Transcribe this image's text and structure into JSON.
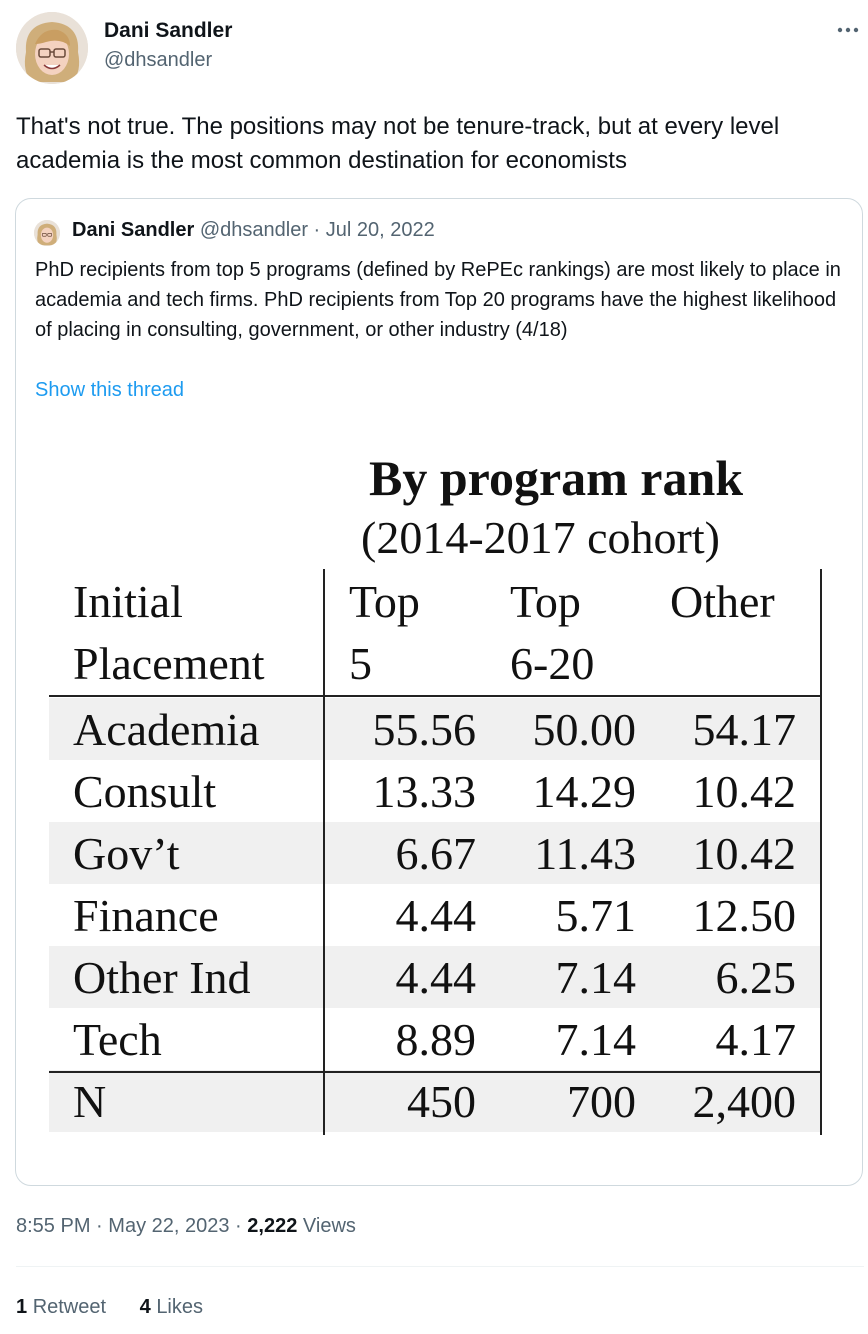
{
  "tweet": {
    "author_name": "Dani Sandler",
    "author_handle": "@dhsandler",
    "text": "That's not true. The positions may not be tenure-track, but at every level academia is the most common destination for economists",
    "time": "8:55 PM",
    "date": "May 22, 2023",
    "views_count": "2,222",
    "views_label": "Views",
    "retweets_count": "1",
    "retweets_label": "Retweet",
    "likes_count": "4",
    "likes_label": "Likes"
  },
  "quoted": {
    "author_name": "Dani Sandler",
    "author_handle": "@dhsandler",
    "separator": "·",
    "date": "Jul 20, 2022",
    "text": "PhD recipients from top 5 programs (defined by RePEc rankings) are most likely to place in academia and tech firms. PhD recipients from Top 20 programs have the highest likelihood of placing in consulting, government, or other industry (4/18)",
    "show_thread": "Show this thread"
  },
  "icons": {
    "more": "more-horizontal-icon"
  },
  "colors": {
    "link": "#1d9bf0",
    "secondary_text": "#536471",
    "border": "#cfd9de"
  },
  "chart_data": {
    "type": "table",
    "title": "By program rank",
    "subtitle": "(2014-2017 cohort)",
    "row_header_line1": "Initial",
    "row_header_line2": "Placement",
    "columns": [
      {
        "line1": "Top",
        "line2": "5"
      },
      {
        "line1": "Top",
        "line2": "6-20"
      },
      {
        "line1": "Other",
        "line2": ""
      }
    ],
    "rows": [
      {
        "label": "Academia",
        "values": [
          "55.56",
          "50.00",
          "54.17"
        ]
      },
      {
        "label": "Consult",
        "values": [
          "13.33",
          "14.29",
          "10.42"
        ]
      },
      {
        "label": "Gov’t",
        "values": [
          "6.67",
          "11.43",
          "10.42"
        ]
      },
      {
        "label": "Finance",
        "values": [
          "4.44",
          "5.71",
          "12.50"
        ]
      },
      {
        "label": "Other Ind",
        "values": [
          "4.44",
          "7.14",
          "6.25"
        ]
      },
      {
        "label": "Tech",
        "values": [
          "8.89",
          "7.14",
          "4.17"
        ]
      }
    ],
    "footer": {
      "label": "N",
      "values": [
        "450",
        "700",
        "2,400"
      ]
    }
  }
}
